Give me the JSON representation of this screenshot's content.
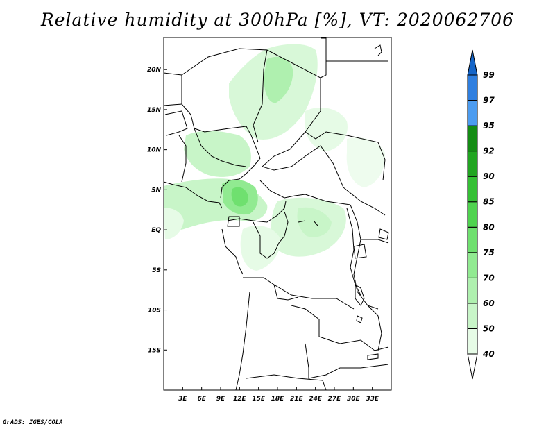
{
  "title": "Relative humidity at 300hPa [%], VT: 2020062706",
  "footer": "GrADS: IGES/COLA",
  "map": {
    "lon_range": [
      0,
      36
    ],
    "lat_range": [
      -20,
      24
    ],
    "x_ticks": [
      {
        "value": 3,
        "label": "3E"
      },
      {
        "value": 6,
        "label": "6E"
      },
      {
        "value": 9,
        "label": "9E"
      },
      {
        "value": 12,
        "label": "12E"
      },
      {
        "value": 15,
        "label": "15E"
      },
      {
        "value": 18,
        "label": "18E"
      },
      {
        "value": 21,
        "label": "21E"
      },
      {
        "value": 24,
        "label": "24E"
      },
      {
        "value": 27,
        "label": "27E"
      },
      {
        "value": 30,
        "label": "30E"
      },
      {
        "value": 33,
        "label": "33E"
      }
    ],
    "y_ticks": [
      {
        "value": 20,
        "label": "20N"
      },
      {
        "value": 15,
        "label": "15N"
      },
      {
        "value": 10,
        "label": "10N"
      },
      {
        "value": 5,
        "label": "5N"
      },
      {
        "value": 0,
        "label": "EQ"
      },
      {
        "value": -5,
        "label": "5S"
      },
      {
        "value": -10,
        "label": "10S"
      },
      {
        "value": -15,
        "label": "15S"
      }
    ]
  },
  "colorbar": {
    "levels": [
      "40",
      "50",
      "60",
      "70",
      "75",
      "80",
      "85",
      "90",
      "92",
      "95",
      "97",
      "99"
    ],
    "colors": [
      "#ffffff",
      "#e6fbe6",
      "#c8f5c8",
      "#aff0af",
      "#91ea91",
      "#6fe06f",
      "#4fd34f",
      "#35c035",
      "#21a521",
      "#148c14",
      "#4c9cf0",
      "#2f7fe0",
      "#1565c8"
    ]
  }
}
